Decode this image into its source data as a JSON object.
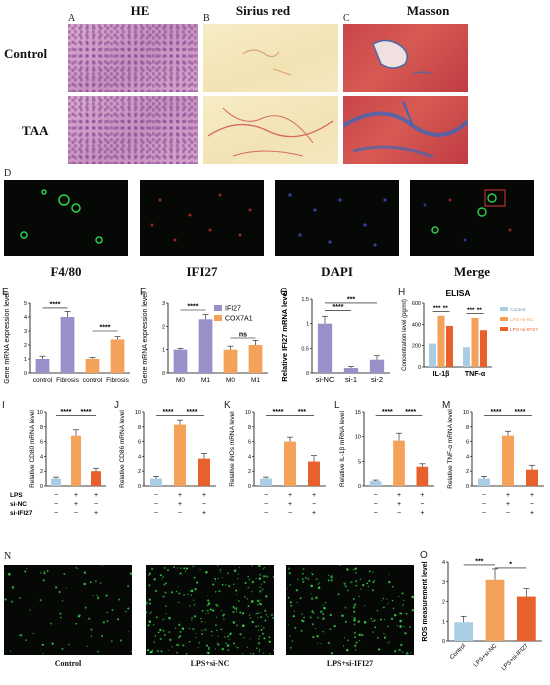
{
  "histology": {
    "col_headers": [
      "HE",
      "Sirius red",
      "Masson"
    ],
    "panel_letters": [
      "A",
      "B",
      "C"
    ],
    "row_labels": [
      "Control",
      "TAA"
    ]
  },
  "if_panel": {
    "letter": "D",
    "labels": [
      "F4/80",
      "IFI27",
      "DAPI",
      "Merge"
    ]
  },
  "chart_data": [
    {
      "id": "E",
      "type": "bar",
      "ylabel": "Gene mRNA expression level",
      "categories": [
        "control",
        "Fibrosis",
        "control",
        "Fibrosis"
      ],
      "values": [
        1.0,
        4.0,
        1.0,
        2.4
      ],
      "errors": [
        0.2,
        0.4,
        0.1,
        0.2
      ],
      "colors": [
        "#9a8fc9",
        "#9a8fc9",
        "#f4a25a",
        "#f4a25a"
      ],
      "ylim": [
        0,
        5
      ],
      "sig": [
        "****",
        "****"
      ]
    },
    {
      "id": "F",
      "type": "bar",
      "ylabel": "Gene mRNA expression level",
      "categories": [
        "M0",
        "M1",
        "M0",
        "M1"
      ],
      "values": [
        1.0,
        2.3,
        1.0,
        1.2
      ],
      "errors": [
        0.05,
        0.2,
        0.15,
        0.2
      ],
      "colors": [
        "#9a8fc9",
        "#9a8fc9",
        "#f4a25a",
        "#f4a25a"
      ],
      "ylim": [
        0,
        3
      ],
      "legend": [
        "IFI27",
        "COX7A1"
      ],
      "sig": [
        "****",
        "ns"
      ]
    },
    {
      "id": "G",
      "type": "bar",
      "ylabel": "Relative IFI27 mRNA level",
      "categories": [
        "si-NC",
        "si-1",
        "si-2"
      ],
      "values": [
        1.0,
        0.1,
        0.27
      ],
      "errors": [
        0.15,
        0.03,
        0.08
      ],
      "colors": [
        "#9a8fc9",
        "#9a8fc9",
        "#9a8fc9"
      ],
      "ylim": [
        0,
        1.5
      ],
      "sig": [
        "****",
        "***"
      ]
    },
    {
      "id": "H",
      "type": "bar",
      "title": "ELISA",
      "ylabel": "Concentration level (pg/ml)",
      "categories": [
        "IL-1β",
        "TNF-α"
      ],
      "series": [
        {
          "name": "Control",
          "values": [
            220,
            185
          ],
          "color": "#a9cde3"
        },
        {
          "name": "LPS+si-NC",
          "values": [
            480,
            460
          ],
          "color": "#f4a25a"
        },
        {
          "name": "LPS+si-IFI27",
          "values": [
            385,
            345
          ],
          "color": "#e8602c"
        }
      ],
      "ylim": [
        0,
        600
      ],
      "sig": [
        "***",
        "**",
        "***",
        "**"
      ]
    },
    {
      "id": "I",
      "type": "bar",
      "ylabel": "Relative CD80 mRNA level",
      "values": [
        1.0,
        6.8,
        2.0
      ],
      "errors": [
        0.2,
        0.8,
        0.4
      ],
      "ylim": [
        0,
        10
      ],
      "sig": [
        "****",
        "****"
      ]
    },
    {
      "id": "J",
      "type": "bar",
      "ylabel": "Relative CD86 mRNA level",
      "values": [
        1.0,
        8.3,
        3.7
      ],
      "errors": [
        0.3,
        0.6,
        0.7
      ],
      "ylim": [
        0,
        10
      ],
      "sig": [
        "****",
        "****"
      ]
    },
    {
      "id": "K",
      "type": "bar",
      "ylabel": "Relative iNOs mRNA level",
      "values": [
        1.0,
        6.0,
        3.3
      ],
      "errors": [
        0.2,
        0.6,
        0.8
      ],
      "ylim": [
        0,
        10
      ],
      "sig": [
        "****",
        "***"
      ]
    },
    {
      "id": "L",
      "type": "bar",
      "ylabel": "Relative IL-1β mRNA level",
      "values": [
        1.0,
        9.2,
        3.9
      ],
      "errors": [
        0.2,
        1.5,
        0.6
      ],
      "ylim": [
        0,
        15
      ],
      "sig": [
        "****",
        "****"
      ]
    },
    {
      "id": "M",
      "type": "bar",
      "ylabel": "Relative TNF-α mRNA level",
      "values": [
        1.0,
        6.8,
        2.2
      ],
      "errors": [
        0.3,
        0.6,
        0.6
      ],
      "ylim": [
        0,
        10
      ],
      "sig": [
        "****",
        "****"
      ]
    },
    {
      "id": "O",
      "type": "bar",
      "ylabel": "ROS measurement level",
      "categories": [
        "Control",
        "LPS+si-NC",
        "LPS+si-IFI27"
      ],
      "values": [
        0.95,
        3.1,
        2.25
      ],
      "errors": [
        0.3,
        0.55,
        0.4
      ],
      "colors": [
        "#a9cde3",
        "#f4a25a",
        "#e8602c"
      ],
      "ylim": [
        0,
        4
      ],
      "sig": [
        "***",
        "*"
      ]
    }
  ],
  "treatment_table": {
    "rows": [
      "LPS",
      "si-NC",
      "si-IFI27"
    ],
    "signs": [
      [
        "−",
        "+",
        "+"
      ],
      [
        "−",
        "+",
        "−"
      ],
      [
        "−",
        "−",
        "+"
      ]
    ]
  },
  "ros_panel": {
    "letter": "N",
    "labels": [
      "Control",
      "LPS+si-NC",
      "LPS+si-IFI27"
    ],
    "letter_O": "O"
  }
}
